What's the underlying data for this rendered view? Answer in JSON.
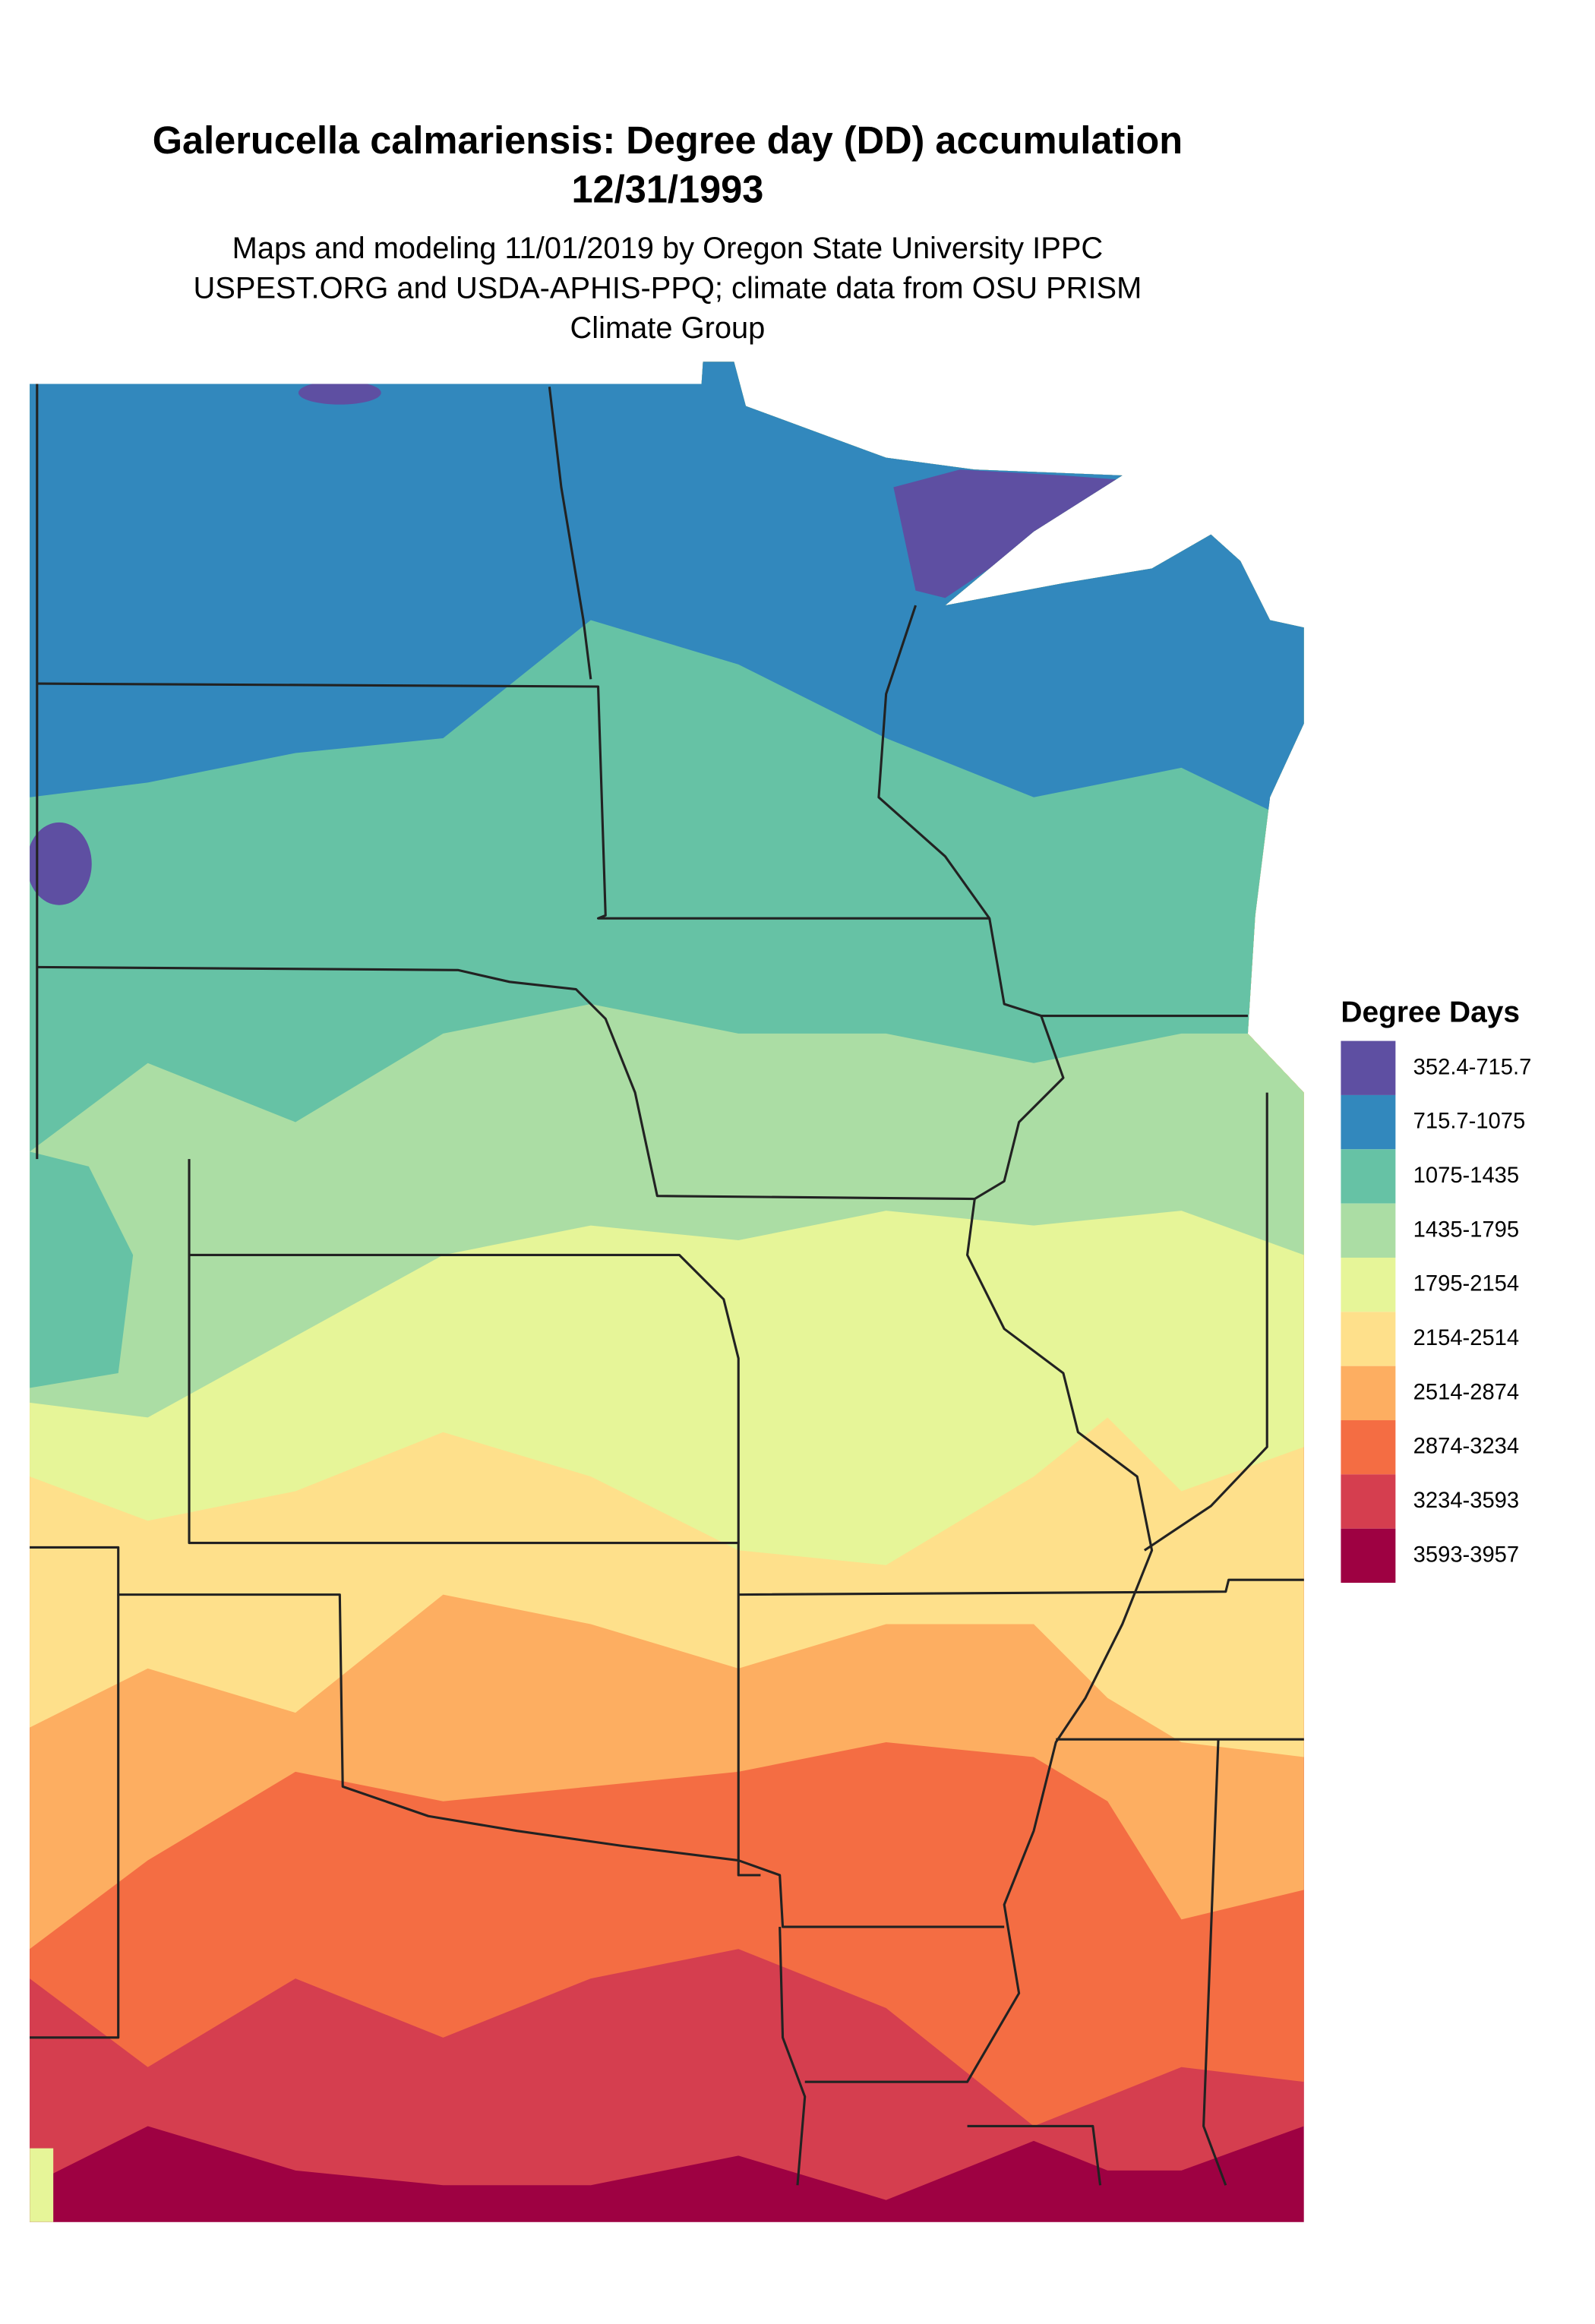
{
  "header": {
    "title": "Galerucella calmariensis: Degree day (DD) accumulation",
    "date": "12/31/1993",
    "subtitle": [
      "Maps and modeling 11/01/2019 by Oregon State University IPPC",
      "USPEST.ORG and USDA-APHIS-PPQ; climate data from OSU PRISM",
      "Climate Group"
    ]
  },
  "legend": {
    "title": "Degree Days",
    "items": [
      {
        "label": "352.4-715.7",
        "color": "#5e4fa2"
      },
      {
        "label": "715.7-1075",
        "color": "#3288bd"
      },
      {
        "label": "1075-1435",
        "color": "#66c2a5"
      },
      {
        "label": "1435-1795",
        "color": "#abdda4"
      },
      {
        "label": "1795-2154",
        "color": "#e6f598"
      },
      {
        "label": "2154-2514",
        "color": "#fee08b"
      },
      {
        "label": "2514-2874",
        "color": "#fdae61"
      },
      {
        "label": "2874-3234",
        "color": "#f46d43"
      },
      {
        "label": "3234-3593",
        "color": "#d53e4f"
      },
      {
        "label": "3593-3957",
        "color": "#9e0142"
      }
    ]
  }
}
